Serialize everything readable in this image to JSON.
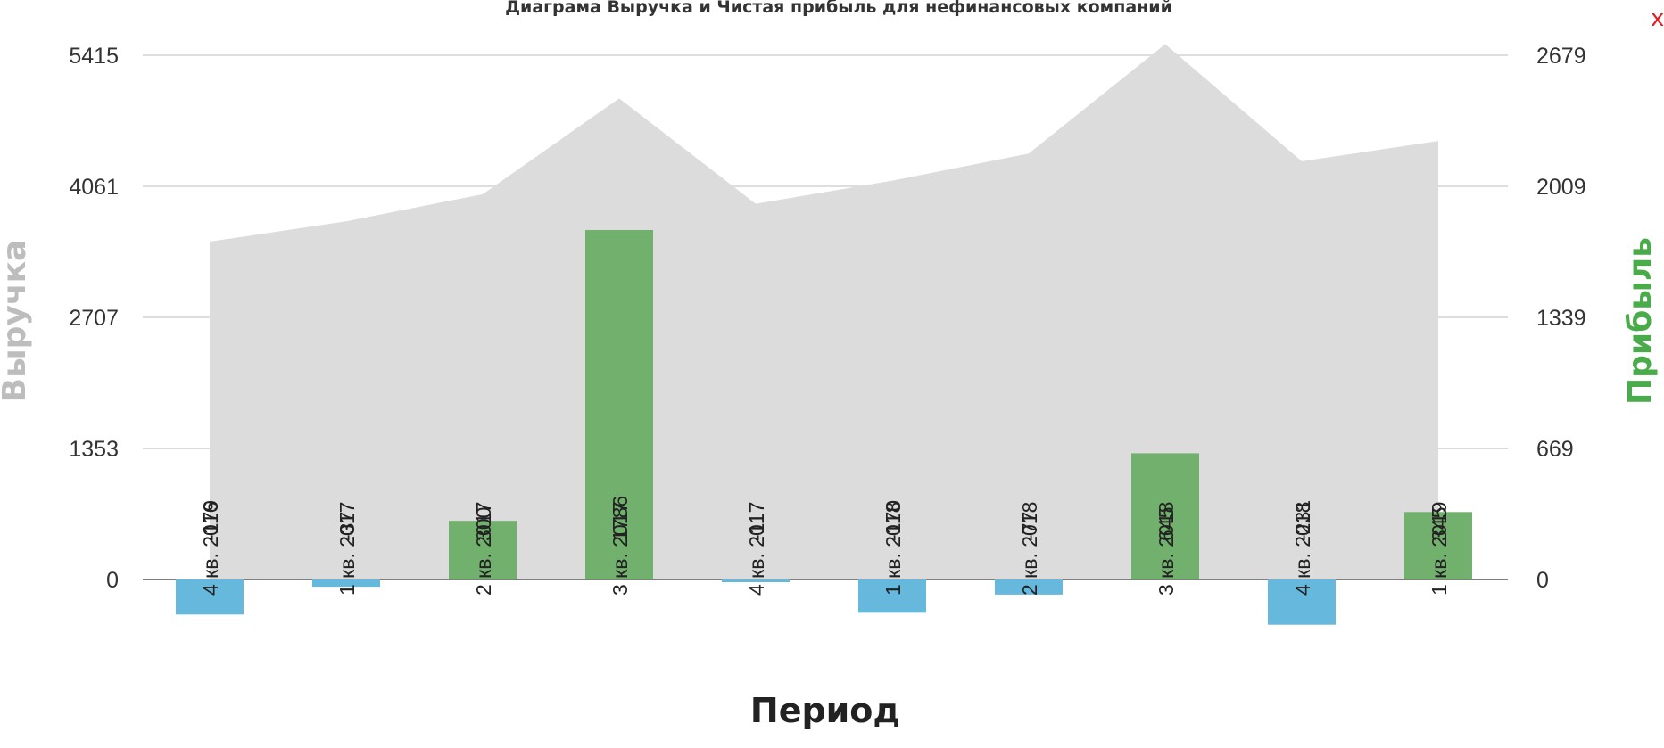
{
  "close_label": "x",
  "chart_data": {
    "type": "bar",
    "title": "Диаграма Выручка и Чистая прибыль для нефинансовых компаний",
    "xlabel": "Период",
    "ylabel_left": "Выручка",
    "ylabel_right": "Прибыль",
    "categories": [
      "4 кв. 2016",
      "1 кв. 2017",
      "2 кв. 2017",
      "3 кв. 2017",
      "4 кв. 2017",
      "1 кв. 2018",
      "2 кв. 2018",
      "3 кв. 2018",
      "4 кв. 2018",
      "1 кв. 2019"
    ],
    "left_axis": {
      "ticks": [
        0,
        1353,
        2707,
        4061,
        5415
      ],
      "range": [
        0,
        5415
      ]
    },
    "right_axis": {
      "ticks": [
        0,
        669,
        1339,
        2009,
        2679
      ],
      "range": [
        0,
        2679
      ]
    },
    "grid": true,
    "series": [
      {
        "name": "Выручка",
        "type": "area",
        "axis": "left",
        "color": "#dcdcdc",
        "values": [
          3490,
          3700,
          3980,
          4970,
          3880,
          4120,
          4400,
          5530,
          4320,
          4530
        ]
      },
      {
        "name": "Прибыль",
        "type": "bar",
        "axis": "right",
        "color_positive": "#72b06d",
        "color_negative": "#66b8dc",
        "values": [
          -179,
          -37,
          300,
          1786,
          -11,
          -170,
          -77,
          645,
          -231,
          345
        ],
        "labels": [
          "-179",
          "-37",
          "300",
          "1786",
          "-11",
          "-170",
          "-77",
          "645",
          "-231",
          "345"
        ]
      }
    ],
    "colors": {
      "left_label": "#bdbdbd",
      "right_label": "#4aab4a",
      "grid": "#d4d4d4",
      "axis_text": "#333333"
    }
  }
}
